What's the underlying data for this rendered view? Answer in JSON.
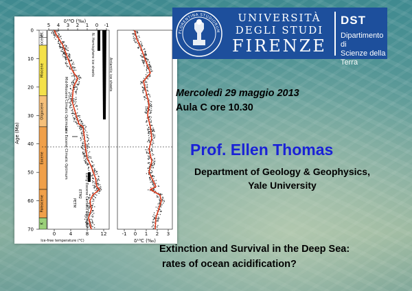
{
  "logo": {
    "line1": "UNIVERSITÀ",
    "line2": "DEGLI STUDI",
    "line3": "FIRENZE",
    "dept_abbr": "DST",
    "dept_line1": "Dipartimento di",
    "dept_line2": "Scienze della Terra",
    "seal_text": "FLORENTINA STUDIORUM UNIVERSITAS"
  },
  "event": {
    "date": "Mercoledì 29 maggio 2013",
    "room": "Aula C ore 10.30"
  },
  "speaker": {
    "name": "Prof. Ellen Thomas",
    "affiliation_line1": "Department of Geology & Geophysics,",
    "affiliation_line2": "Yale University"
  },
  "talk": {
    "title_line1": "Extinction and Survival in the Deep Sea:",
    "title_line2": "rates of ocean acidification?"
  },
  "figure": {
    "top_axis_title": "δ¹⁸O (‰)",
    "bottom_axis_title": "δ¹³C (‰)",
    "temp_axis_title": "Ice-free temperature (°C)",
    "y_axis_title": "Age (Ma)",
    "top_ticks": [
      "5",
      "4",
      "3",
      "2",
      "1",
      "0",
      "-1"
    ],
    "bottom_ticks_left": [
      "0",
      "4",
      "8",
      "12"
    ],
    "bottom_ticks_right": [
      "-1",
      "0",
      "1",
      "2",
      "3"
    ],
    "age_ticks": [
      "0",
      "10",
      "20",
      "30",
      "40",
      "50",
      "60",
      "70"
    ],
    "epochs": [
      "Plt.",
      "Pliocene",
      "Miocene",
      "Oligocene",
      "Eocene",
      "Paleocene",
      "K"
    ],
    "annotations": [
      "Mid-Miocene Climatic Optimum",
      "Late Eocene Climatic Optimum",
      "Early Eocene Climatic Optimum",
      "PETM",
      "ETM2",
      "N. Hemisphere ice sheets",
      "Antarctic ice sheets"
    ],
    "colors": {
      "yellow": "#f4e14a",
      "orange": "#f0a04a",
      "lightorange": "#f6c07a",
      "green": "#9bd07a",
      "curve": "#e03b1b"
    }
  }
}
